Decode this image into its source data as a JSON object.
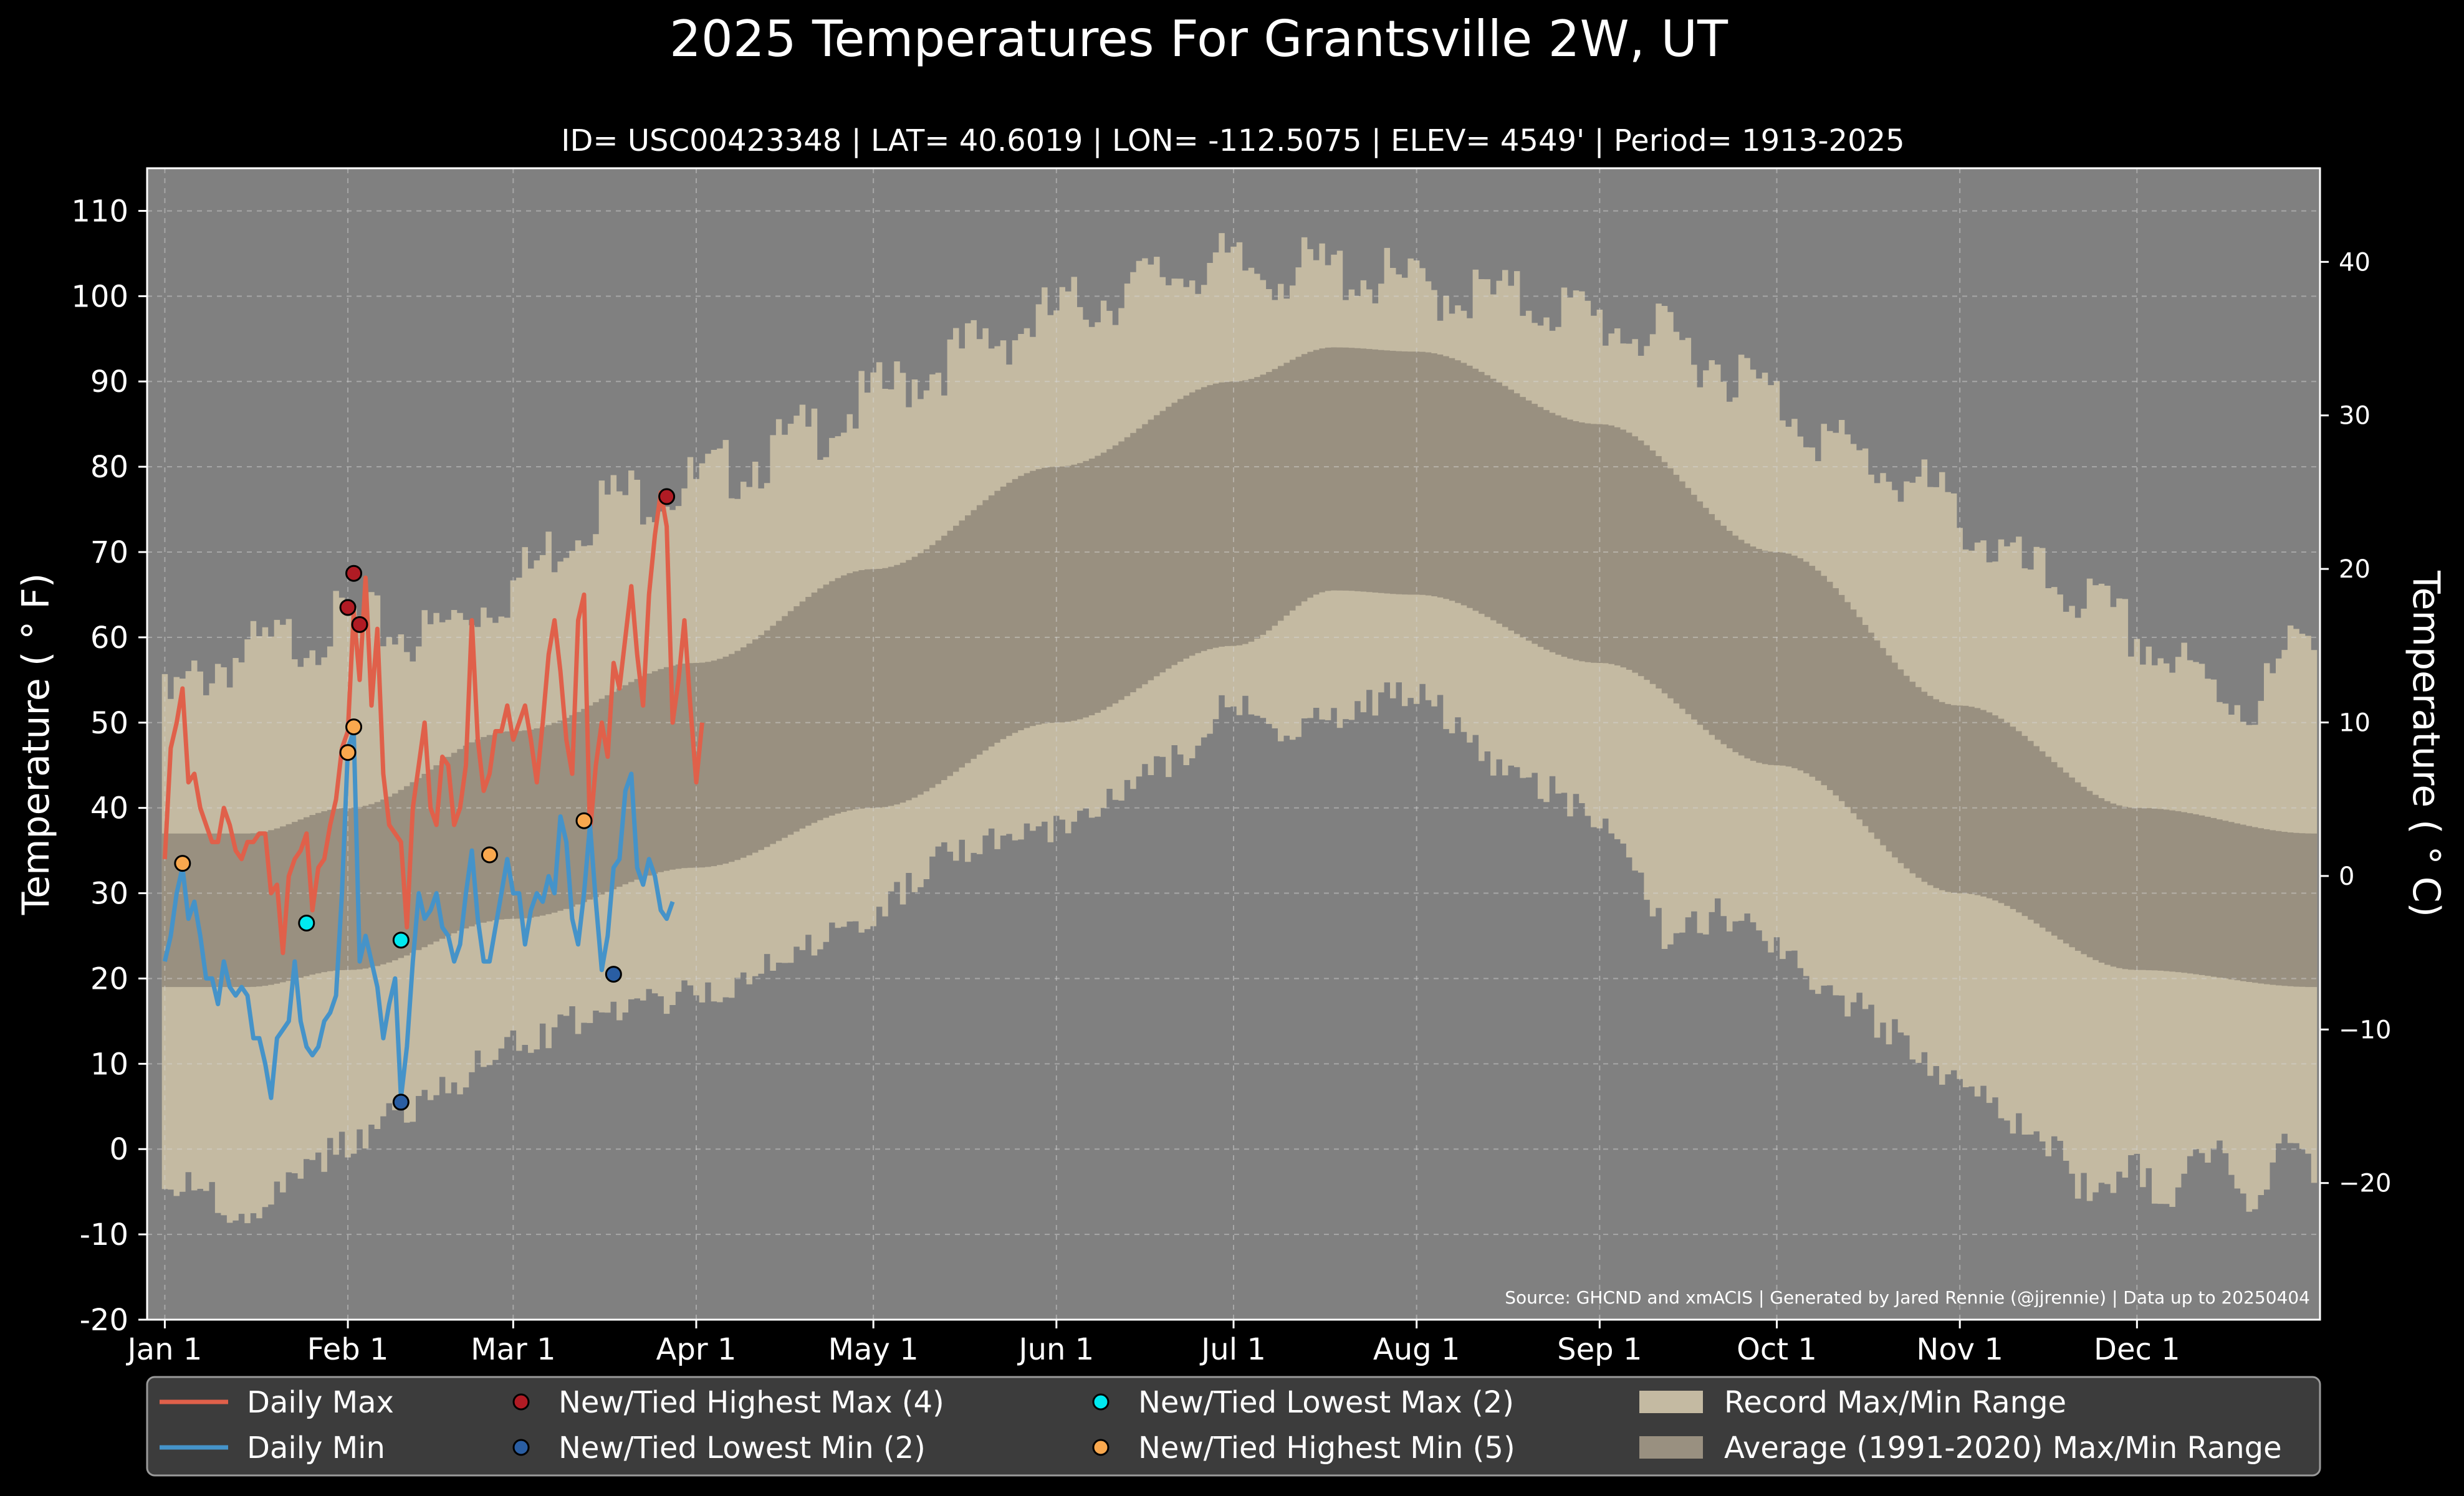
{
  "chart_data": {
    "type": "line",
    "title": "2025 Temperatures For Grantsville 2W, UT",
    "subtitle": "ID= USC00423348 | LAT= 40.6019 | LON= -112.5075 | ELEV= 4549' | Period= 1913-2025",
    "ylabel": "Temperature ( $^\\circ$F)",
    "ylabel_display": "Temperature ( ° F)",
    "ylabel_right_display": "Temperature ( ° C)",
    "ylim": [
      -20,
      115
    ],
    "yticks": [
      "-20",
      "-10",
      "0",
      "10",
      "20",
      "30",
      "40",
      "50",
      "60",
      "70",
      "80",
      "90",
      "100",
      "110"
    ],
    "ylim_celsius": [
      -28.9,
      46.1
    ],
    "yticks_celsius": [
      "−20",
      "−10",
      "0",
      "10",
      "20",
      "30",
      "40"
    ],
    "xlim_day": [
      -2,
      366
    ],
    "x_ticks": [
      {
        "label": "Jan 1",
        "day": 1
      },
      {
        "label": "Feb 1",
        "day": 32
      },
      {
        "label": "Mar 1",
        "day": 60
      },
      {
        "label": "Apr 1",
        "day": 91
      },
      {
        "label": "May 1",
        "day": 121
      },
      {
        "label": "Jun 1",
        "day": 152
      },
      {
        "label": "Jul 1",
        "day": 182
      },
      {
        "label": "Aug 1",
        "day": 213
      },
      {
        "label": "Sep 1",
        "day": 244
      },
      {
        "label": "Oct 1",
        "day": 274
      },
      {
        "label": "Nov 1",
        "day": 305
      },
      {
        "label": "Dec 1",
        "day": 335
      }
    ],
    "grid": true,
    "source": "Source: GHCND and xmACIS | Generated by Jared Rennie (@jjrennie) | Data up to 20250404",
    "legend": {
      "placement": "bottom",
      "entries": [
        {
          "label": "Daily Max",
          "kind": "line",
          "color": "#e0604a"
        },
        {
          "label": "Daily Min",
          "kind": "line",
          "color": "#4593c9"
        },
        {
          "label": "New/Tied Highest Max (4)",
          "kind": "marker",
          "color": "#b01b24"
        },
        {
          "label": "New/Tied Lowest Min (2)",
          "kind": "marker",
          "color": "#2a5ea3"
        },
        {
          "label": "New/Tied Lowest Max (2)",
          "kind": "marker",
          "color": "#00eaf0"
        },
        {
          "label": "New/Tied Highest Min (5)",
          "kind": "marker",
          "color": "#f9a84e"
        },
        {
          "label": "Record Max/Min Range",
          "kind": "patch",
          "color": "#c4baa2"
        },
        {
          "label": "Average (1991-2020) Max/Min Range",
          "kind": "patch",
          "color": "#999080"
        }
      ]
    },
    "colors": {
      "figure_bg": "#000000",
      "axes_bg": "#808080",
      "record_range": "#c4baa2",
      "normal_range": "#999080",
      "daily_max": "#e0604a",
      "daily_min": "#4593c9",
      "legend_bg": "#3c3c3c"
    },
    "normals": {
      "description_points": "day-of-year anchors of the 1991-2020 mean max / mean min",
      "max": [
        [
          1,
          37
        ],
        [
          15,
          37
        ],
        [
          32,
          40
        ],
        [
          60,
          49
        ],
        [
          91,
          57
        ],
        [
          121,
          68
        ],
        [
          152,
          80
        ],
        [
          182,
          90
        ],
        [
          199,
          94
        ],
        [
          213,
          93.5
        ],
        [
          244,
          85
        ],
        [
          274,
          70
        ],
        [
          305,
          52
        ],
        [
          335,
          40
        ],
        [
          365,
          37
        ]
      ],
      "min": [
        [
          1,
          19
        ],
        [
          15,
          19
        ],
        [
          32,
          21
        ],
        [
          60,
          27
        ],
        [
          91,
          33
        ],
        [
          121,
          40
        ],
        [
          152,
          50
        ],
        [
          182,
          59
        ],
        [
          199,
          65.5
        ],
        [
          213,
          65
        ],
        [
          244,
          57
        ],
        [
          274,
          45
        ],
        [
          305,
          30
        ],
        [
          335,
          21
        ],
        [
          365,
          19
        ]
      ]
    },
    "records": {
      "max": [
        [
          1,
          52
        ],
        [
          10,
          57
        ],
        [
          20,
          59
        ],
        [
          32,
          62
        ],
        [
          45,
          60
        ],
        [
          60,
          66
        ],
        [
          75,
          76
        ],
        [
          91,
          78
        ],
        [
          105,
          82
        ],
        [
          121,
          88
        ],
        [
          135,
          93
        ],
        [
          152,
          98
        ],
        [
          165,
          101
        ],
        [
          178,
          104
        ],
        [
          182,
          103
        ],
        [
          200,
          103
        ],
        [
          213,
          101
        ],
        [
          225,
          100
        ],
        [
          236,
          99
        ],
        [
          244,
          97
        ],
        [
          255,
          95
        ],
        [
          265,
          92
        ],
        [
          274,
          88
        ],
        [
          285,
          82
        ],
        [
          300,
          77
        ],
        [
          305,
          74
        ],
        [
          315,
          68
        ],
        [
          325,
          65
        ],
        [
          335,
          60
        ],
        [
          345,
          55
        ],
        [
          355,
          52
        ],
        [
          365,
          62
        ]
      ],
      "min": [
        [
          1,
          -3
        ],
        [
          8,
          -1
        ],
        [
          13,
          -8
        ],
        [
          20,
          -2
        ],
        [
          30,
          2
        ],
        [
          40,
          6
        ],
        [
          50,
          10
        ],
        [
          60,
          14
        ],
        [
          70,
          17
        ],
        [
          80,
          19
        ],
        [
          91,
          20
        ],
        [
          100,
          22
        ],
        [
          110,
          26
        ],
        [
          121,
          30
        ],
        [
          135,
          37
        ],
        [
          152,
          40
        ],
        [
          165,
          45
        ],
        [
          175,
          49
        ],
        [
          182,
          55
        ],
        [
          190,
          50
        ],
        [
          200,
          53
        ],
        [
          213,
          56
        ],
        [
          225,
          48
        ],
        [
          236,
          44
        ],
        [
          244,
          41
        ],
        [
          250,
          35
        ],
        [
          255,
          27
        ],
        [
          265,
          30
        ],
        [
          274,
          25
        ],
        [
          285,
          20
        ],
        [
          295,
          15
        ],
        [
          305,
          10
        ],
        [
          310,
          7
        ],
        [
          320,
          3
        ],
        [
          325,
          -2
        ],
        [
          330,
          -3
        ],
        [
          335,
          0
        ],
        [
          340,
          -5
        ],
        [
          345,
          3
        ],
        [
          350,
          1
        ],
        [
          355,
          -5
        ],
        [
          360,
          4
        ],
        [
          365,
          0
        ]
      ]
    },
    "series": [
      {
        "name": "Daily Max",
        "color": "#e0604a",
        "x": [
          1,
          2,
          3,
          4,
          5,
          6,
          7,
          8,
          9,
          10,
          11,
          12,
          13,
          14,
          15,
          16,
          17,
          18,
          19,
          20,
          21,
          22,
          23,
          24,
          25,
          26,
          27,
          28,
          29,
          30,
          31,
          32,
          33,
          34,
          35,
          36,
          37,
          38,
          39,
          40,
          41,
          42,
          43,
          44,
          45,
          46,
          47,
          48,
          49,
          50,
          51,
          52,
          53,
          54,
          55,
          56,
          57,
          58,
          59,
          60,
          61,
          62,
          63,
          64,
          65,
          66,
          67,
          68,
          69,
          70,
          71,
          72,
          73,
          74,
          75,
          76,
          77,
          78,
          79,
          80,
          81,
          82,
          83,
          84,
          85,
          86,
          87,
          88,
          89,
          90,
          91,
          92,
          93,
          94
        ],
        "y": [
          34,
          47,
          50,
          54,
          43,
          44,
          40,
          38,
          36,
          36,
          40,
          38,
          35,
          34,
          36,
          36,
          37,
          37,
          30,
          31,
          23,
          32,
          34,
          35,
          37,
          28,
          33,
          34,
          38,
          41,
          47,
          49,
          63,
          55,
          67,
          52,
          61,
          44,
          38,
          37,
          36,
          26,
          40,
          45,
          50,
          40,
          38,
          46,
          45,
          38,
          40,
          45,
          62,
          48,
          42,
          44,
          49,
          49,
          52,
          48,
          50,
          52,
          48,
          43,
          50,
          58,
          62,
          56,
          48,
          44,
          62,
          65,
          37,
          45,
          50,
          46,
          57,
          54,
          60,
          66,
          58,
          52,
          65,
          72,
          77,
          73,
          50,
          55,
          62,
          52,
          43,
          50,
          null,
          null
        ]
      },
      {
        "name": "Daily Min",
        "color": "#4593c9",
        "x": [
          1,
          2,
          3,
          4,
          5,
          6,
          7,
          8,
          9,
          10,
          11,
          12,
          13,
          14,
          15,
          16,
          17,
          18,
          19,
          20,
          21,
          22,
          23,
          24,
          25,
          26,
          27,
          28,
          29,
          30,
          31,
          32,
          33,
          34,
          35,
          36,
          37,
          38,
          39,
          40,
          41,
          42,
          43,
          44,
          45,
          46,
          47,
          48,
          49,
          50,
          51,
          52,
          53,
          54,
          55,
          56,
          57,
          58,
          59,
          60,
          61,
          62,
          63,
          64,
          65,
          66,
          67,
          68,
          69,
          70,
          71,
          72,
          73,
          74,
          75,
          76,
          77,
          78,
          79,
          80,
          81,
          82,
          83,
          84,
          85,
          86,
          87,
          88,
          89,
          90,
          91,
          92,
          93
        ],
        "y": [
          22,
          25,
          30,
          33,
          27,
          29,
          25,
          20,
          20,
          17,
          22,
          19,
          18,
          19,
          18,
          13,
          13,
          10,
          6,
          13,
          14,
          15,
          22,
          15,
          12,
          11,
          12,
          15,
          16,
          18,
          30,
          47,
          49,
          22,
          25,
          22,
          19,
          13,
          17,
          20,
          6,
          12,
          22,
          30,
          27,
          28,
          30,
          26,
          25,
          22,
          24,
          30,
          35,
          27,
          22,
          22,
          26,
          30,
          34,
          30,
          30,
          24,
          28,
          30,
          29,
          32,
          30,
          39,
          36,
          27,
          24,
          30,
          38,
          29,
          21,
          25,
          33,
          34,
          42,
          44,
          33,
          31,
          34,
          32,
          28,
          27,
          29,
          null,
          null,
          null,
          null,
          null,
          null
        ]
      }
    ],
    "record_markers": {
      "highest_max": [
        [
          32,
          63.5
        ],
        [
          33,
          67.5
        ],
        [
          34,
          61.5
        ],
        [
          86,
          76.5
        ]
      ],
      "lowest_min": [
        [
          41,
          5.5
        ],
        [
          77,
          20.5
        ]
      ],
      "lowest_max": [
        [
          25,
          26.5
        ],
        [
          41,
          24.5
        ]
      ],
      "highest_min": [
        [
          4,
          33.5
        ],
        [
          32,
          46.5
        ],
        [
          33,
          49.5
        ],
        [
          56,
          34.5
        ],
        [
          72,
          38.5
        ]
      ]
    }
  }
}
